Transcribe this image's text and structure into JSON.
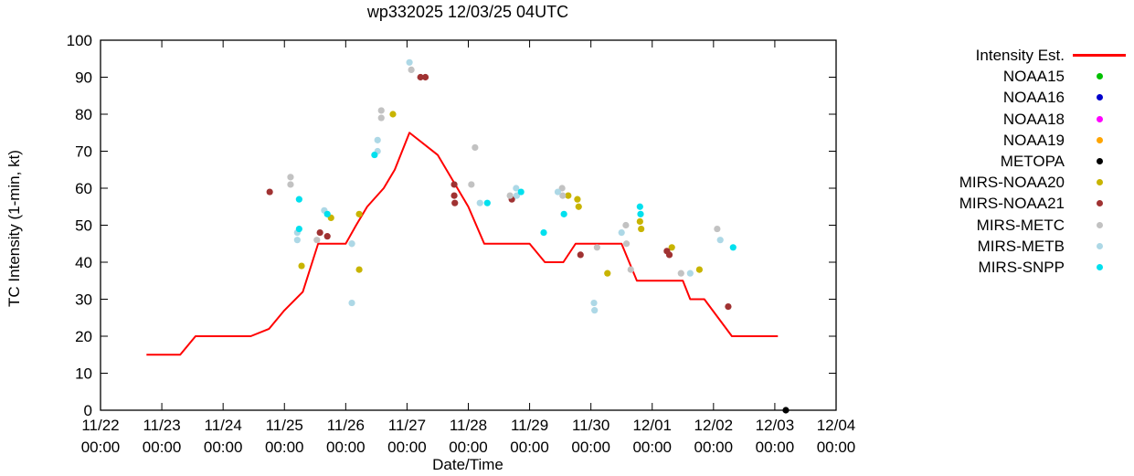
{
  "title": "wp332025 12/03/25 04UTC",
  "axes": {
    "xlabel": "Date/Time",
    "ylabel": "TC Intensity (1-min, kt)",
    "ylim": [
      0,
      100
    ],
    "xlim_days": [
      0,
      12
    ],
    "y_ticks": [
      0,
      10,
      20,
      30,
      40,
      50,
      60,
      70,
      80,
      90,
      100
    ],
    "x_ticks": [
      {
        "day": 0,
        "date": "11/22",
        "time": "00:00"
      },
      {
        "day": 1,
        "date": "11/23",
        "time": "00:00"
      },
      {
        "day": 2,
        "date": "11/24",
        "time": "00:00"
      },
      {
        "day": 3,
        "date": "11/25",
        "time": "00:00"
      },
      {
        "day": 4,
        "date": "11/26",
        "time": "00:00"
      },
      {
        "day": 5,
        "date": "11/27",
        "time": "00:00"
      },
      {
        "day": 6,
        "date": "11/28",
        "time": "00:00"
      },
      {
        "day": 7,
        "date": "11/29",
        "time": "00:00"
      },
      {
        "day": 8,
        "date": "11/30",
        "time": "00:00"
      },
      {
        "day": 9,
        "date": "12/01",
        "time": "00:00"
      },
      {
        "day": 10,
        "date": "12/02",
        "time": "00:00"
      },
      {
        "day": 11,
        "date": "12/03",
        "time": "00:00"
      },
      {
        "day": 12,
        "date": "12/04",
        "time": "00:00"
      }
    ]
  },
  "legend": {
    "items": [
      {
        "label": "Intensity Est.",
        "marker": "line",
        "color": "#ff0000"
      },
      {
        "label": "NOAA15",
        "marker": "dot",
        "color": "#00c000"
      },
      {
        "label": "NOAA16",
        "marker": "dot",
        "color": "#0000cc"
      },
      {
        "label": "NOAA18",
        "marker": "dot",
        "color": "#ff00ff"
      },
      {
        "label": "NOAA19",
        "marker": "dot",
        "color": "#ffa500"
      },
      {
        "label": "METOPA",
        "marker": "dot",
        "color": "#000000"
      },
      {
        "label": "MIRS-NOAA20",
        "marker": "dot",
        "color": "#c8b400"
      },
      {
        "label": "MIRS-NOAA21",
        "marker": "dot",
        "color": "#a03232"
      },
      {
        "label": "MIRS-METC",
        "marker": "dot",
        "color": "#c2c2c2"
      },
      {
        "label": "MIRS-METB",
        "marker": "dot",
        "color": "#add8e6"
      },
      {
        "label": "MIRS-SNPP",
        "marker": "dot",
        "color": "#00e0ee"
      }
    ]
  },
  "chart_data": {
    "type": "line+scatter",
    "x_unit": "days since 11/22 00:00",
    "title": "wp332025 12/03/25 04UTC",
    "xlabel": "Date/Time",
    "ylabel": "TC Intensity (1-min, kt)",
    "ylim": [
      0,
      100
    ],
    "intensity_line": {
      "name": "Intensity Est.",
      "color": "#ff0000",
      "points": [
        [
          0.75,
          15
        ],
        [
          1.3,
          15
        ],
        [
          1.55,
          20
        ],
        [
          2.45,
          20
        ],
        [
          2.75,
          22
        ],
        [
          3.0,
          27
        ],
        [
          3.3,
          32
        ],
        [
          3.55,
          45
        ],
        [
          4.0,
          45
        ],
        [
          4.17,
          50
        ],
        [
          4.35,
          55
        ],
        [
          4.62,
          60
        ],
        [
          4.8,
          65
        ],
        [
          5.04,
          75
        ],
        [
          5.5,
          69
        ],
        [
          6.0,
          55
        ],
        [
          6.26,
          45
        ],
        [
          7.0,
          45
        ],
        [
          7.25,
          40
        ],
        [
          7.55,
          40
        ],
        [
          7.75,
          45
        ],
        [
          8.5,
          45
        ],
        [
          8.75,
          35
        ],
        [
          9.5,
          35
        ],
        [
          9.62,
          30
        ],
        [
          9.85,
          30
        ],
        [
          10.3,
          20
        ],
        [
          11.05,
          20
        ]
      ]
    },
    "series": [
      {
        "name": "NOAA15",
        "color": "#00c000",
        "points": []
      },
      {
        "name": "NOAA16",
        "color": "#0000cc",
        "points": []
      },
      {
        "name": "NOAA18",
        "color": "#ff00ff",
        "points": []
      },
      {
        "name": "NOAA19",
        "color": "#ffa500",
        "points": []
      },
      {
        "name": "METOPA",
        "color": "#000000",
        "points": [
          [
            11.18,
            0
          ]
        ]
      },
      {
        "name": "MIRS-NOAA20",
        "color": "#c8b400",
        "points": [
          [
            3.28,
            39
          ],
          [
            3.76,
            52
          ],
          [
            4.22,
            53
          ],
          [
            4.22,
            38
          ],
          [
            4.77,
            80
          ],
          [
            7.63,
            58
          ],
          [
            7.78,
            57
          ],
          [
            7.8,
            55
          ],
          [
            8.27,
            37
          ],
          [
            8.8,
            51
          ],
          [
            8.82,
            49
          ],
          [
            9.32,
            44
          ],
          [
            9.77,
            38
          ]
        ]
      },
      {
        "name": "MIRS-NOAA21",
        "color": "#a03232",
        "points": [
          [
            2.76,
            59
          ],
          [
            3.58,
            48
          ],
          [
            3.7,
            47
          ],
          [
            5.22,
            90
          ],
          [
            5.3,
            90
          ],
          [
            5.77,
            61
          ],
          [
            5.77,
            58
          ],
          [
            5.78,
            56
          ],
          [
            6.71,
            57
          ],
          [
            7.83,
            42
          ],
          [
            9.24,
            43
          ],
          [
            9.28,
            42
          ],
          [
            10.24,
            28
          ]
        ]
      },
      {
        "name": "MIRS-METC",
        "color": "#c2c2c2",
        "points": [
          [
            3.1,
            63
          ],
          [
            3.1,
            61
          ],
          [
            3.53,
            46
          ],
          [
            4.1,
            45
          ],
          [
            4.58,
            81
          ],
          [
            4.58,
            79
          ],
          [
            5.07,
            92
          ],
          [
            6.05,
            61
          ],
          [
            6.11,
            71
          ],
          [
            6.68,
            58
          ],
          [
            7.53,
            60
          ],
          [
            7.54,
            58
          ],
          [
            8.1,
            44
          ],
          [
            8.57,
            50
          ],
          [
            8.58,
            45
          ],
          [
            8.65,
            38
          ],
          [
            9.47,
            37
          ],
          [
            10.06,
            49
          ]
        ]
      },
      {
        "name": "MIRS-METB",
        "color": "#add8e6",
        "points": [
          [
            3.21,
            48
          ],
          [
            3.21,
            46
          ],
          [
            3.65,
            54
          ],
          [
            4.1,
            45
          ],
          [
            4.1,
            29
          ],
          [
            4.52,
            73
          ],
          [
            4.52,
            70
          ],
          [
            5.04,
            94
          ],
          [
            6.19,
            56
          ],
          [
            6.78,
            60
          ],
          [
            6.79,
            58
          ],
          [
            7.46,
            59
          ],
          [
            8.05,
            29
          ],
          [
            8.06,
            27
          ],
          [
            8.5,
            48
          ],
          [
            9.62,
            37
          ],
          [
            10.11,
            46
          ]
        ]
      },
      {
        "name": "MIRS-SNPP",
        "color": "#00e0ee",
        "points": [
          [
            3.24,
            57
          ],
          [
            3.24,
            49
          ],
          [
            3.7,
            53
          ],
          [
            4.47,
            69
          ],
          [
            6.31,
            56
          ],
          [
            6.86,
            59
          ],
          [
            7.23,
            48
          ],
          [
            7.56,
            53
          ],
          [
            8.8,
            55
          ],
          [
            8.81,
            53
          ],
          [
            10.32,
            44
          ]
        ]
      }
    ]
  }
}
